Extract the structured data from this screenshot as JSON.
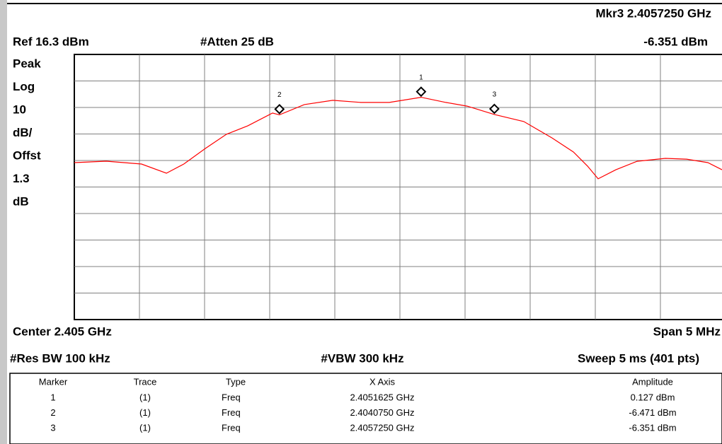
{
  "header": {
    "marker_freq": "Mkr3  2.4057250 GHz",
    "ref": "Ref 16.3 dBm",
    "atten": "#Atten 25 dB",
    "marker_amp": "-6.351 dBm"
  },
  "side_labels": [
    "Peak",
    "Log",
    "10",
    "dB/",
    "Offst",
    "1.3",
    "dB"
  ],
  "footer": {
    "center": "Center 2.405 GHz",
    "span": "Span 5 MHz",
    "rbw": "#Res BW 100 kHz",
    "vbw": "#VBW 300 kHz",
    "sweep": "Sweep 5 ms (401 pts)"
  },
  "chart_data": {
    "type": "line",
    "xlim": [
      2.4025,
      2.4075
    ],
    "ylim": [
      -83.7,
      16.3
    ],
    "color": "#ff0000",
    "series": [
      {
        "x": [
          2.4025,
          2.402745,
          2.403016,
          2.403207,
          2.403342,
          2.403505,
          2.403668,
          2.403832,
          2.404022,
          2.404075,
          2.404266,
          2.404484,
          2.404701,
          2.404918,
          2.4051625,
          2.405353,
          2.405516,
          2.405725,
          2.405951,
          2.406168,
          2.406332,
          2.40644,
          2.406522,
          2.406658,
          2.406821,
          2.407038,
          2.407201,
          2.407364,
          2.407473
        ],
        "values": [
          -24.5,
          -23.97,
          -25.03,
          -28.5,
          -25.0,
          -19.2,
          -13.8,
          -10.6,
          -5.8,
          -6.471,
          -2.6,
          -1.0,
          -1.8,
          -1.8,
          0.127,
          -1.8,
          -3.2,
          -6.351,
          -9.0,
          -15.2,
          -20.5,
          -25.8,
          -30.6,
          -27.2,
          -24.0,
          -22.9,
          -23.2,
          -24.5,
          -27.2
        ]
      }
    ],
    "markers": [
      {
        "label": "1",
        "x": 2.4051625,
        "value": 0.127
      },
      {
        "label": "2",
        "x": 2.404075,
        "value": -6.471
      },
      {
        "label": "3",
        "x": 2.405725,
        "value": -6.351
      }
    ]
  },
  "table": {
    "columns": [
      "Marker",
      "Trace",
      "Type",
      "X Axis",
      "Amplitude"
    ],
    "rows": [
      [
        "1",
        "(1)",
        "Freq",
        "2.4051625 GHz",
        "0.127 dBm"
      ],
      [
        "2",
        "(1)",
        "Freq",
        "2.4040750 GHz",
        "-6.471 dBm"
      ],
      [
        "3",
        "(1)",
        "Freq",
        "2.4057250 GHz",
        "-6.351 dBm"
      ]
    ]
  }
}
